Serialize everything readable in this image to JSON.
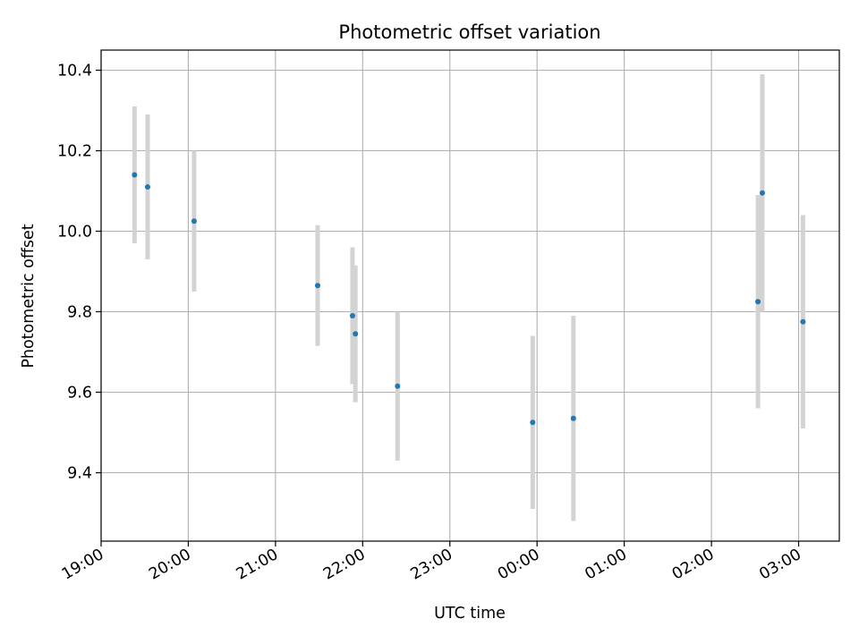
{
  "chart_data": {
    "type": "scatter",
    "title": "Photometric offset variation",
    "xlabel": "UTC time",
    "ylabel": "Photometric offset",
    "x_axis_kind": "time",
    "x_start": "19:00",
    "xlim": [
      "19:00",
      "03:28"
    ],
    "ylim": [
      9.23,
      10.45
    ],
    "x_ticks": [
      "19:00",
      "20:00",
      "21:00",
      "22:00",
      "23:00",
      "00:00",
      "01:00",
      "02:00",
      "03:00"
    ],
    "y_ticks": [
      "9.4",
      "9.6",
      "9.8",
      "10.0",
      "10.2",
      "10.4"
    ],
    "grid": true,
    "colors": {
      "point": "#1f77b4",
      "errorbar": "#d3d3d3"
    },
    "points": [
      {
        "x": "19:23",
        "y": 10.14,
        "err": 0.17
      },
      {
        "x": "19:32",
        "y": 10.11,
        "err": 0.18
      },
      {
        "x": "20:04",
        "y": 10.025,
        "err": 0.175
      },
      {
        "x": "21:29",
        "y": 9.865,
        "err": 0.15
      },
      {
        "x": "21:53",
        "y": 9.79,
        "err": 0.17
      },
      {
        "x": "21:55",
        "y": 9.745,
        "err": 0.17
      },
      {
        "x": "22:24",
        "y": 9.615,
        "err": 0.185
      },
      {
        "x": "23:57",
        "y": 9.525,
        "err": 0.215
      },
      {
        "x": "00:25",
        "y": 9.535,
        "err": 0.255
      },
      {
        "x": "02:32",
        "y": 9.825,
        "err": 0.265
      },
      {
        "x": "02:35",
        "y": 10.095,
        "err": 0.295
      },
      {
        "x": "03:03",
        "y": 9.775,
        "err": 0.265
      }
    ]
  }
}
